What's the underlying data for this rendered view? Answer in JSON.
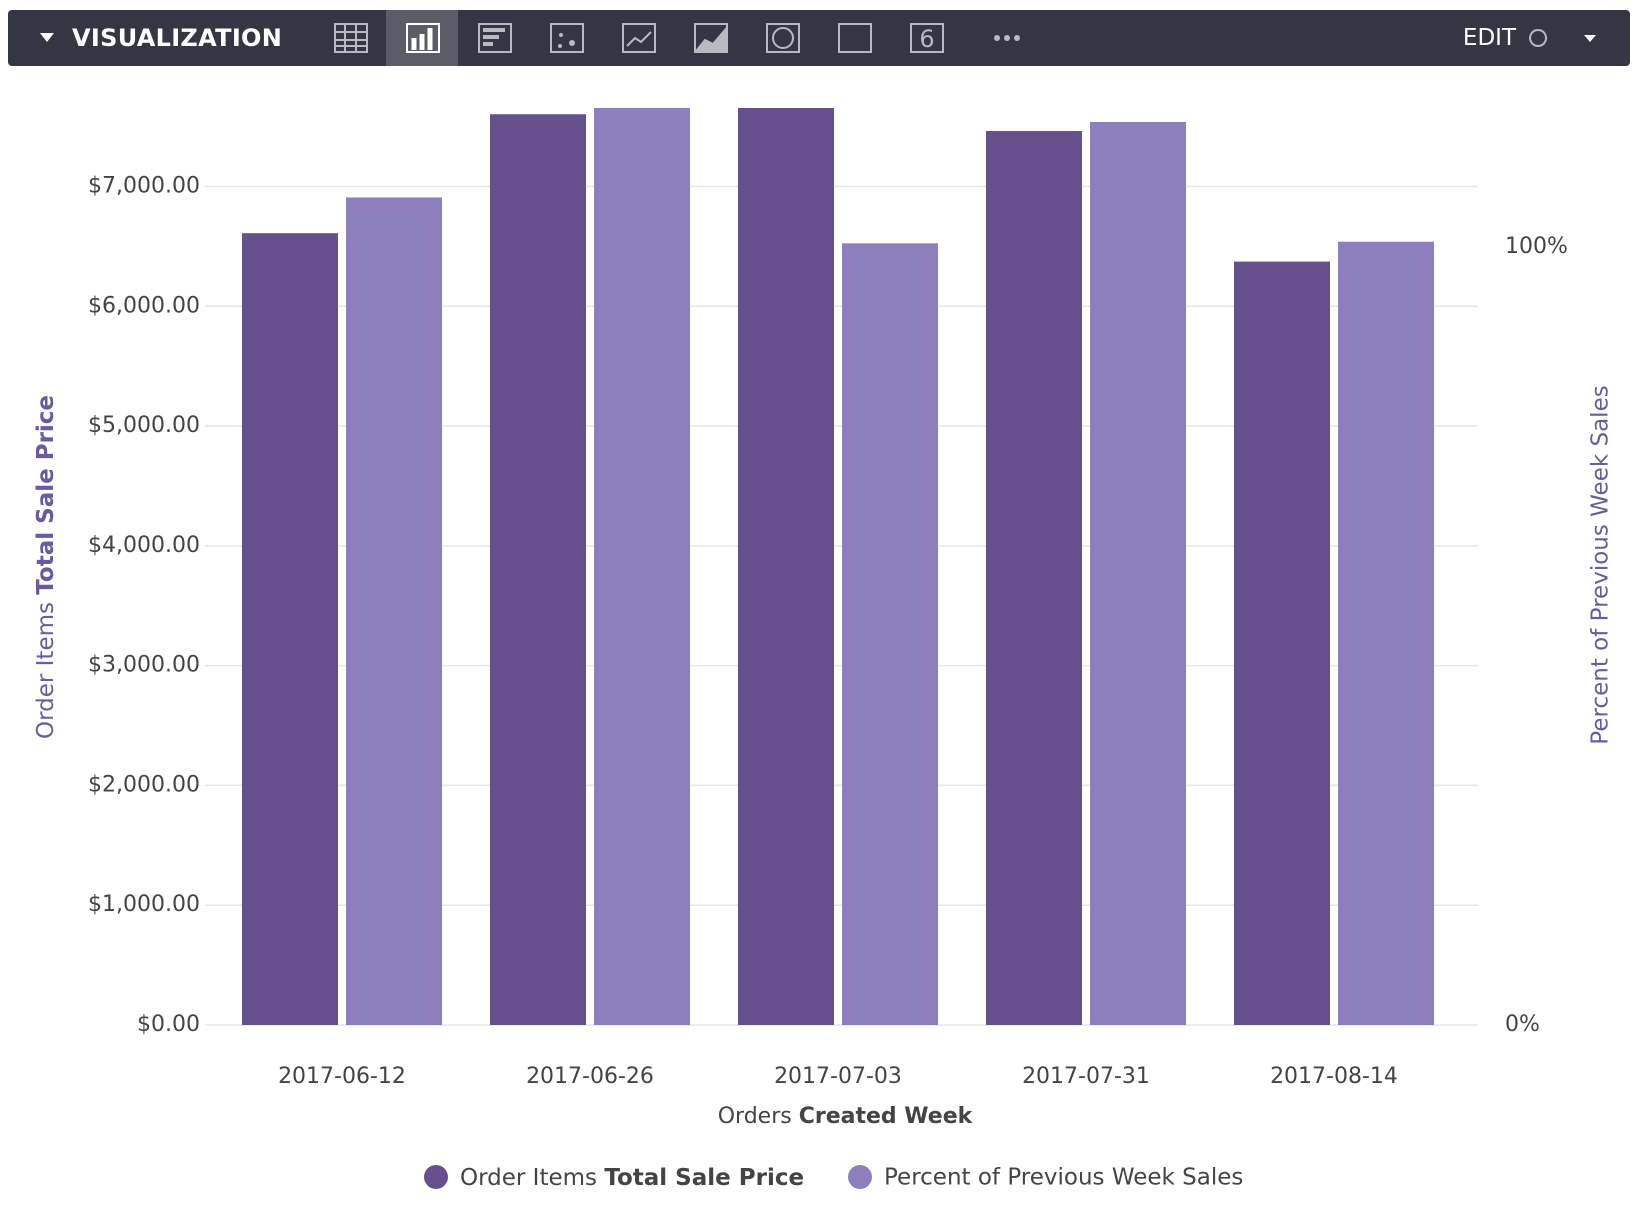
{
  "toolbar": {
    "title": "VISUALIZATION",
    "action": "EDIT",
    "single_value_icon": "6"
  },
  "chart_data": {
    "type": "bar",
    "x_label": {
      "prefix": "Orders",
      "bold": "Created Week"
    },
    "y_label": {
      "prefix": "Order Items",
      "bold": "Total Sale Price"
    },
    "y2_label": "Percent of Previous Week Sales",
    "categories": [
      "2017-06-12",
      "2017-06-26",
      "2017-07-03",
      "2017-07-31",
      "2017-08-14"
    ],
    "series": [
      {
        "name": "Order Items",
        "name_bold": "Total Sale Price",
        "color": "#654f8d",
        "values": [
          6610,
          7603,
          7655,
          7463,
          6373
        ]
      },
      {
        "name": "Percent of Previous Week Sales",
        "color": "#8d7ebd",
        "axis": "y2",
        "values": [
          106.4,
          117.9,
          100.5,
          116.1,
          100.7
        ]
      }
    ],
    "ylim": [
      0,
      7655
    ],
    "yticks": [
      {
        "value": 0,
        "label": "$0.00"
      },
      {
        "value": 1000,
        "label": "$1,000.00"
      },
      {
        "value": 2000,
        "label": "$2,000.00"
      },
      {
        "value": 3000,
        "label": "$3,000.00"
      },
      {
        "value": 4000,
        "label": "$4,000.00"
      },
      {
        "value": 5000,
        "label": "$5,000.00"
      },
      {
        "value": 6000,
        "label": "$6,000.00"
      },
      {
        "value": 7000,
        "label": "$7,000.00"
      }
    ],
    "y2lim": [
      0,
      117.9
    ],
    "y2ticks": [
      {
        "value": 0,
        "label": "0%"
      },
      {
        "value": 100,
        "label": "100%"
      }
    ],
    "grid": true,
    "legend": "bottom"
  }
}
